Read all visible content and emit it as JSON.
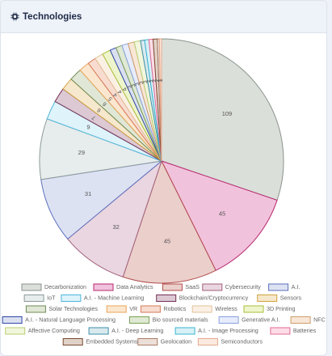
{
  "card": {
    "title": "Technologies",
    "icon": "chip-icon"
  },
  "chart_data": {
    "type": "pie",
    "title": "",
    "labels": [
      "Decarbonization",
      "Data Analytics",
      "SaaS",
      "Cybersecurity",
      "A.I.",
      "IoT",
      "A.I. - Machine Learning",
      "Blockchain/Cryptocurrency",
      "Sensors",
      "Solar Technologies",
      "VR",
      "Robotics",
      "Wireless",
      "3D Printing",
      "A.I. - Natural Language Processing",
      "Bio sourced materials",
      "Generative A.I.",
      "NFC",
      "Affective Computing",
      "A.I. - Deep Learning",
      "A.I. - Image Processing",
      "Batteries",
      "Embedded Systems",
      "Geolocation",
      "Semiconductors"
    ],
    "values": [
      109,
      45,
      45,
      32,
      31,
      29,
      9,
      7,
      6,
      6,
      5,
      4,
      4,
      4,
      3,
      3,
      3,
      3,
      3,
      2,
      2,
      2,
      2,
      1,
      1
    ],
    "slice_labels": [
      "109",
      "45",
      "45",
      "32",
      "31",
      "29",
      "9",
      "7",
      "6",
      "6",
      "5",
      "4",
      "4",
      "4",
      "3",
      "3",
      "3",
      "3",
      "3",
      "2",
      "2",
      "2",
      "2",
      "1",
      "1"
    ],
    "colors": [
      {
        "fill": "#dbdfd9",
        "stroke": "#8a938c"
      },
      {
        "fill": "#f1c2dc",
        "stroke": "#b8266e"
      },
      {
        "fill": "#ebcfcb",
        "stroke": "#b24c4c"
      },
      {
        "fill": "#e9d6e0",
        "stroke": "#a2607c"
      },
      {
        "fill": "#dde2f3",
        "stroke": "#5b6fbd"
      },
      {
        "fill": "#e7ecec",
        "stroke": "#8b9a9a"
      },
      {
        "fill": "#dff3fb",
        "stroke": "#4cb6dc"
      },
      {
        "fill": "#dcc9d3",
        "stroke": "#742f55"
      },
      {
        "fill": "#f6e8cc",
        "stroke": "#d0a23e"
      },
      {
        "fill": "#e1e7d6",
        "stroke": "#6f8a54"
      },
      {
        "fill": "#fbe7cf",
        "stroke": "#e8a558"
      },
      {
        "fill": "#f8dcd0",
        "stroke": "#d57a5a"
      },
      {
        "fill": "#fbf0e4",
        "stroke": "#e2c29a"
      },
      {
        "fill": "#eef5cc",
        "stroke": "#a7bf3a"
      },
      {
        "fill": "#dbe0f1",
        "stroke": "#2f47a7"
      },
      {
        "fill": "#dfe9d3",
        "stroke": "#7ea058"
      },
      {
        "fill": "#e6ecfa",
        "stroke": "#8aa2df"
      },
      {
        "fill": "#f8e7d7",
        "stroke": "#cf9c6c"
      },
      {
        "fill": "#f1f6dd",
        "stroke": "#b9cf72"
      },
      {
        "fill": "#d9eaef",
        "stroke": "#3e8fa8"
      },
      {
        "fill": "#d8f1f7",
        "stroke": "#39b6d2"
      },
      {
        "fill": "#fcdde7",
        "stroke": "#e36b93"
      },
      {
        "fill": "#e1d2c8",
        "stroke": "#7a4a2f"
      },
      {
        "fill": "#ecdfd8",
        "stroke": "#a97c66"
      },
      {
        "fill": "#fbeadf",
        "stroke": "#e7a98d"
      }
    ],
    "legend": {
      "position": "bottom"
    }
  }
}
